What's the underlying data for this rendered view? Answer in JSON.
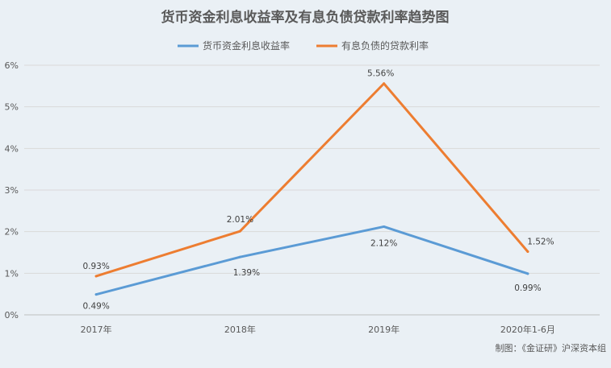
{
  "chart_data": {
    "type": "line",
    "title": "货币资金利息收益率及有息负债贷款利率趋势图",
    "categories": [
      "2017年",
      "2018年",
      "2019年",
      "2020年1-6月"
    ],
    "ylim": [
      0,
      6
    ],
    "yticks": [
      "0%",
      "1%",
      "2%",
      "3%",
      "4%",
      "5%",
      "6%"
    ],
    "grid": true,
    "legend_position": "top",
    "series": [
      {
        "name": "货币资金利息收益率",
        "color": "#5b9bd5",
        "values": [
          0.49,
          1.39,
          2.12,
          0.99
        ],
        "labels": [
          "0.49%",
          "1.39%",
          "2.12%",
          "0.99%"
        ]
      },
      {
        "name": "有息负债的贷款利率",
        "color": "#ed7d31",
        "values": [
          0.93,
          2.01,
          5.56,
          1.52
        ],
        "labels": [
          "0.93%",
          "2.01%",
          "5.56%",
          "1.52%"
        ]
      }
    ]
  },
  "footer": {
    "credit": "制图：《金证研》沪深资本组"
  }
}
